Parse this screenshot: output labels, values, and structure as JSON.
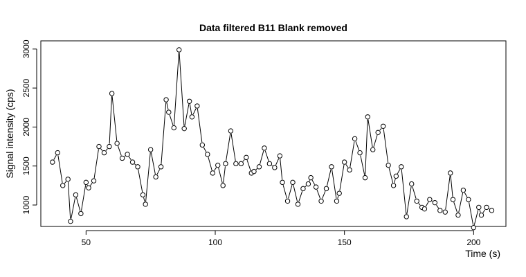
{
  "chart_data": {
    "type": "line",
    "title": "Data filtered B11 Blank removed",
    "xlabel": "Time (s)",
    "ylabel": "Signal intensity (cps)",
    "xlim": [
      32.5,
      212.5
    ],
    "ylim": [
      725,
      3105
    ],
    "xticks": [
      50,
      100,
      150,
      200
    ],
    "yticks": [
      1000,
      1500,
      2000,
      2500,
      3000
    ],
    "grid": false,
    "legend": "none",
    "colors": {
      "line": "#000000",
      "marker_stroke": "#000000",
      "marker_fill": "#ffffff",
      "background": "#ffffff"
    },
    "x": [
      37,
      39,
      41,
      43,
      44,
      46,
      48,
      50,
      51,
      53,
      55,
      57,
      59,
      60,
      62,
      64,
      66,
      68,
      70,
      72,
      73,
      75,
      77,
      79,
      81,
      82,
      84,
      86,
      88,
      90,
      91,
      93,
      95,
      97,
      99,
      101,
      103,
      104,
      106,
      108,
      110,
      112,
      114,
      115,
      117,
      119,
      121,
      123,
      125,
      126,
      128,
      130,
      132,
      134,
      136,
      137,
      139,
      141,
      143,
      145,
      147,
      148,
      150,
      152,
      154,
      156,
      158,
      159,
      161,
      163,
      165,
      167,
      169,
      170,
      172,
      174,
      176,
      178,
      180,
      181,
      183,
      185,
      187,
      189,
      191,
      192,
      194,
      196,
      198,
      200,
      202,
      203,
      205,
      207
    ],
    "y": [
      1550,
      1670,
      1250,
      1330,
      790,
      1130,
      890,
      1290,
      1220,
      1310,
      1750,
      1670,
      1750,
      2430,
      1790,
      1600,
      1650,
      1550,
      1490,
      1130,
      1010,
      1710,
      1360,
      1490,
      2350,
      2190,
      1990,
      2990,
      1980,
      2330,
      2130,
      2270,
      1770,
      1650,
      1410,
      1510,
      1250,
      1530,
      1950,
      1530,
      1530,
      1610,
      1410,
      1430,
      1490,
      1730,
      1530,
      1480,
      1630,
      1290,
      1050,
      1290,
      1010,
      1210,
      1270,
      1350,
      1230,
      1050,
      1210,
      1490,
      1050,
      1150,
      1550,
      1450,
      1850,
      1670,
      1350,
      2130,
      1710,
      1930,
      2010,
      1510,
      1250,
      1370,
      1490,
      850,
      1270,
      1050,
      970,
      950,
      1070,
      1030,
      930,
      910,
      1410,
      1070,
      870,
      1190,
      1070,
      710,
      970,
      870,
      970,
      930
    ]
  }
}
